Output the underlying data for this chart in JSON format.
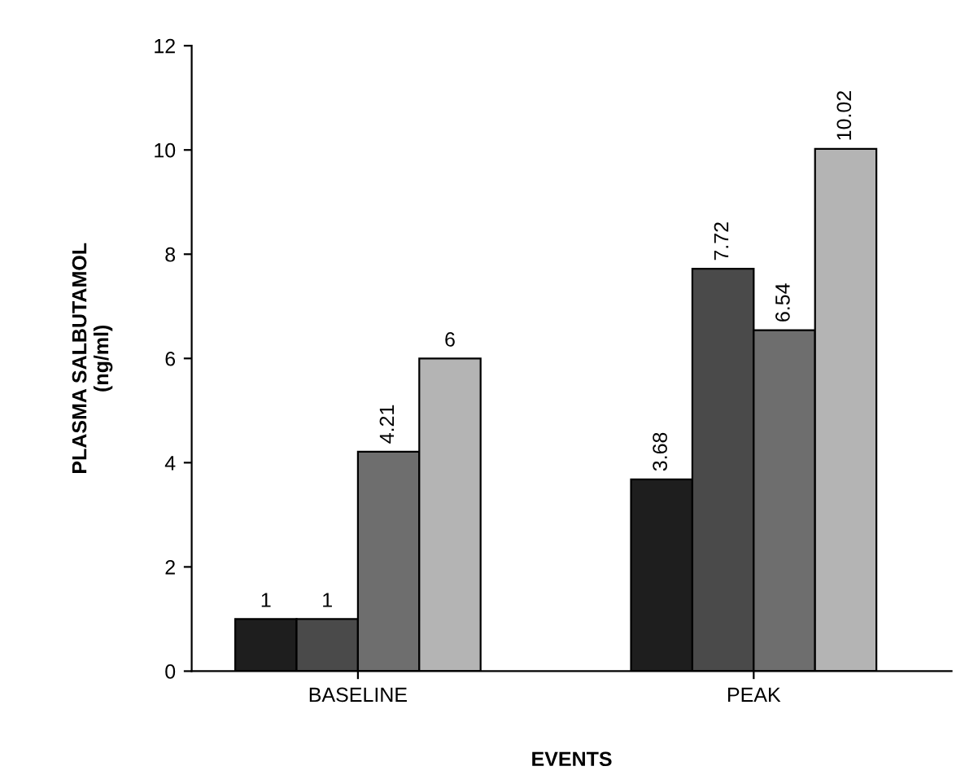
{
  "chart_data": {
    "type": "bar",
    "xlabel": "EVENTS",
    "ylabel": "PLASMA SALBUTAMOL\n(ng/ml)",
    "categories": [
      "BASELINE",
      "PEAK"
    ],
    "series": [
      {
        "color": "#1e1e1e",
        "values": [
          1,
          3.68
        ]
      },
      {
        "color": "#4a4a4a",
        "values": [
          1,
          7.72
        ]
      },
      {
        "color": "#6e6e6e",
        "values": [
          4.21,
          6.54
        ]
      },
      {
        "color": "#b4b4b4",
        "values": [
          6,
          10.02
        ]
      }
    ],
    "ylim": [
      0,
      12
    ],
    "yticks": [
      0,
      2,
      4,
      6,
      8,
      10,
      12
    ],
    "data_labels": true,
    "grid": false,
    "legend": false
  }
}
